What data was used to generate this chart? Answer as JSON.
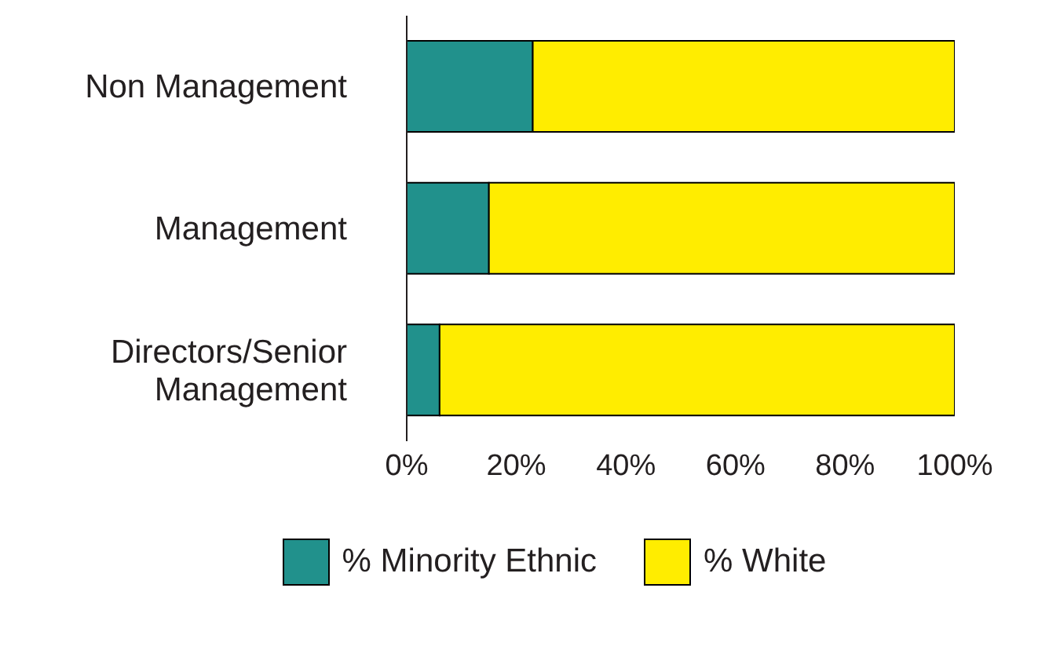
{
  "chart_data": {
    "type": "bar",
    "orientation": "horizontal",
    "stacked": true,
    "categories": [
      "Non Management",
      "Management",
      "Directors/Senior Management"
    ],
    "series": [
      {
        "name": "% Minority Ethnic",
        "color": "#21918c",
        "values": [
          23,
          15,
          6
        ]
      },
      {
        "name": "% White",
        "color": "#ffed00",
        "values": [
          77,
          85,
          94
        ]
      }
    ],
    "xlim": [
      0,
      100
    ],
    "xticks": [
      {
        "value": 0,
        "label": "0%"
      },
      {
        "value": 20,
        "label": "20%"
      },
      {
        "value": 40,
        "label": "40%"
      },
      {
        "value": 60,
        "label": "60%"
      },
      {
        "value": 80,
        "label": "80%"
      },
      {
        "value": 100,
        "label": "100%"
      }
    ],
    "grid": false,
    "legend": "bottom"
  }
}
